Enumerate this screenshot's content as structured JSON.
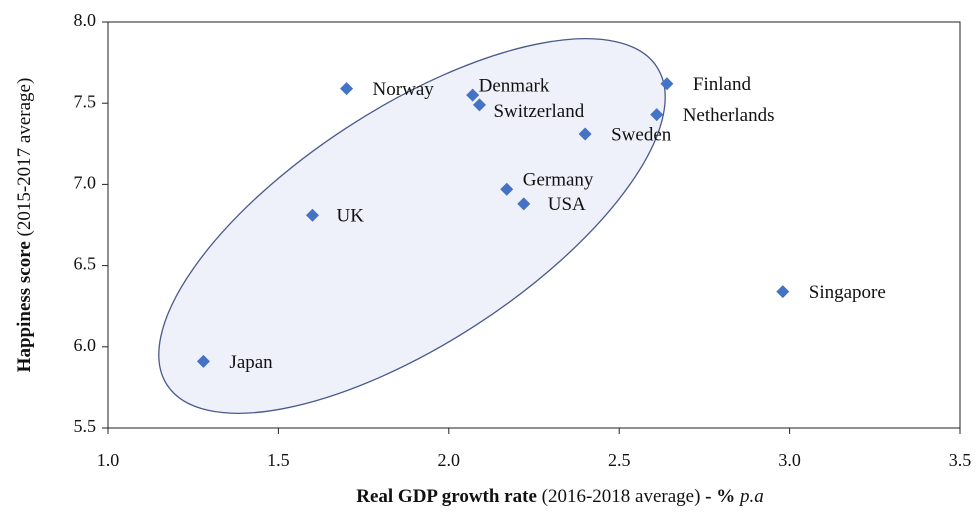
{
  "chart_data": {
    "type": "scatter",
    "x_label": [
      "Real GDP growth rate",
      "(2016-2018 average)",
      "- %",
      "p.a"
    ],
    "y_label": [
      "Happiness score",
      "(2015-2017 average)"
    ],
    "color": "#4472c4",
    "labels": [
      "Norway",
      "Denmark",
      "Switzerland",
      "Finland",
      "Netherlands",
      "Sweden",
      "Germany",
      "USA",
      "UK",
      "Japan",
      "Singapore"
    ],
    "x": [
      1.7,
      2.07,
      2.09,
      2.64,
      2.61,
      2.4,
      2.17,
      2.22,
      1.6,
      1.28,
      2.98
    ],
    "y": [
      7.59,
      7.55,
      7.49,
      7.62,
      7.43,
      7.31,
      6.97,
      6.88,
      6.81,
      5.91,
      6.34
    ],
    "xlim": [
      1.0,
      3.5
    ],
    "xticks": [
      {
        "value": 1.0,
        "label": "1.0"
      },
      1.5,
      {
        "value": 2.0,
        "label": "2.0"
      },
      2.5,
      {
        "value": 3.0,
        "label": "3.0"
      },
      3.5
    ],
    "ylim": [
      5.5,
      8.0
    ],
    "yticks": [
      5.5,
      {
        "value": 6.0,
        "label": "6.0"
      },
      6.5,
      {
        "value": 7.0,
        "label": "7.0"
      },
      7.5,
      {
        "value": 8.0,
        "label": "8.0"
      }
    ],
    "grid": false
  }
}
